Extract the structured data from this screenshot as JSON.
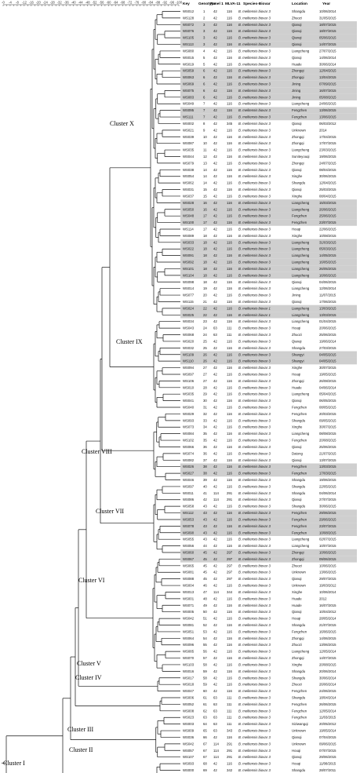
{
  "scale_labels": [
    "-0",
    "-2",
    "-4",
    "-6",
    "-8",
    "-10",
    "-12",
    "-14",
    "-16",
    "-18",
    "-20",
    "-22",
    "-24",
    "-26",
    "-28",
    "-30",
    "-32",
    "-34",
    "-36",
    "-38",
    "-40",
    "-42",
    "-44",
    "-46",
    "-48",
    "-50",
    "-52",
    "-54",
    "-56",
    "-58",
    "-60",
    "-62",
    "-64",
    "-66",
    "-68",
    "-70",
    "-72",
    "-74",
    "-76",
    "-78",
    "-80",
    "-82",
    "-84",
    "-86",
    "-88",
    "-90",
    "-92",
    "-94",
    "-96",
    "-98",
    "-100"
  ],
  "headers": {
    "key": "Key",
    "genotype": "Genotype",
    "panel1": "Panel 1",
    "mlva": "MLVA-11",
    "species": "Species-Biovar",
    "location": "Location",
    "year": "Year"
  },
  "colors": {
    "highlight": "#cfcfcf",
    "line": "#111111"
  },
  "rows": [
    [
      "WS012",
      "1",
      "42",
      "116",
      "B. melitensis biovar 3",
      "Shangdu",
      "10/06/2014",
      0
    ],
    [
      "WS128",
      "2",
      "42",
      "116",
      "B. melitensis biovar 3",
      "Zhuozi",
      "31/05/2015",
      0
    ],
    [
      "WS072",
      "3",
      "42",
      "116",
      "B. melitensis biovar 3",
      "Qianqi",
      "18/07/2015",
      1
    ],
    [
      "WS076",
      "3",
      "42",
      "116",
      "B. melitensis biovar 3",
      "Qianqi",
      "18/07/2015",
      1
    ],
    [
      "WS105",
      "3",
      "42",
      "116",
      "B. melitensis biovar 3",
      "Qianqi",
      "05/06/2015",
      1
    ],
    [
      "WS113",
      "3",
      "42",
      "116",
      "B. melitensis biovar 3",
      "Qianqi",
      "14/07/2015",
      1
    ],
    [
      "WS080",
      "4",
      "42",
      "116",
      "B. melitensis biovar 3",
      "Liangcheng",
      "27/07/2015",
      0
    ],
    [
      "WS015",
      "5",
      "42",
      "116",
      "B. melitensis biovar 3",
      "Qianqi",
      "14/06/2014",
      0
    ],
    [
      "WS019",
      "5",
      "42",
      "116",
      "B. melitensis biovar 3",
      "Huade",
      "30/06/2014",
      0
    ],
    [
      "WS059",
      "6",
      "42",
      "116",
      "B. melitensis biovar 3",
      "Zhongqi",
      "12/04/2015",
      1
    ],
    [
      "WS063",
      "6",
      "42",
      "116",
      "B. melitensis biovar 3",
      "Zhongqi",
      "13/04/2015",
      1
    ],
    [
      "WS069",
      "6",
      "42",
      "116",
      "B. melitensis biovar 3",
      "Jining",
      "07/09/2015",
      1
    ],
    [
      "WS075",
      "6",
      "42",
      "116",
      "B. melitensis biovar 3",
      "Jining",
      "16/07/2015",
      1
    ],
    [
      "WS083",
      "6",
      "42",
      "116",
      "B. melitensis biovar 3",
      "Jining",
      "05/08/2015",
      1
    ],
    [
      "WS049",
      "7",
      "42",
      "116",
      "B. melitensis biovar 3",
      "Liangcheng",
      "24/06/2015",
      0
    ],
    [
      "WS095",
      "7",
      "42",
      "116",
      "B. melitensis biovar 3",
      "Fengzhen",
      "13/06/2015",
      1
    ],
    [
      "WS111",
      "7",
      "42",
      "116",
      "B. melitensis biovar 3",
      "Fengzhen",
      "13/06/2015",
      1
    ],
    [
      "WS002",
      "8",
      "42",
      "345",
      "B. melitensis biovar 3",
      "Qianqi",
      "06/03/2012",
      0
    ],
    [
      "WS021",
      "9",
      "42",
      "116",
      "B. melitensis biovar 3",
      "Unknown",
      "2014",
      0
    ],
    [
      "WS039",
      "10",
      "42",
      "116",
      "B. melitensis biovar 3",
      "Zhongqi",
      "17/04/2015",
      0
    ],
    [
      "WS087",
      "10",
      "42",
      "116",
      "B. melitensis biovar 3",
      "Zhongqi",
      "17/07/2015",
      0
    ],
    [
      "WS035",
      "11",
      "42",
      "116",
      "B. melitensis biovar 3",
      "Liangcheng",
      "23/03/2015",
      0
    ],
    [
      "WS044",
      "12",
      "42",
      "116",
      "B. melitensis biovar 3",
      "Suniteyouqi",
      "19/06/2015",
      0
    ],
    [
      "WS079",
      "13",
      "42",
      "116",
      "B. melitensis biovar 3",
      "Zhongqi",
      "24/07/2015",
      0
    ],
    [
      "WS038",
      "14",
      "42",
      "116",
      "B. melitensis biovar 3",
      "Qianqi",
      "08/04/2015",
      0
    ],
    [
      "WS054",
      "14",
      "42",
      "116",
      "B. melitensis biovar 3",
      "Xinghe",
      "30/06/2015",
      0
    ],
    [
      "WS062",
      "14",
      "42",
      "116",
      "B. melitensis biovar 3",
      "Shangdu",
      "12/04/2015",
      0
    ],
    [
      "WS031",
      "15",
      "42",
      "116",
      "B. melitensis biovar 3",
      "Qianqi",
      "25/03/2015",
      0
    ],
    [
      "WS037",
      "15",
      "42",
      "116",
      "B. melitensis biovar 3",
      "Xinghe",
      "08/04/2015",
      0
    ],
    [
      "WS028",
      "16",
      "42",
      "116",
      "B. melitensis biovar 3",
      "Liangcheng",
      "15/03/2015",
      1
    ],
    [
      "WS050",
      "16",
      "42",
      "116",
      "B. melitensis biovar 3",
      "Liangcheng",
      "26/06/2015",
      1
    ],
    [
      "WS048",
      "17",
      "42",
      "116",
      "B. melitensis biovar 3",
      "Fengzhen",
      "25/06/2015",
      1
    ],
    [
      "WS100",
      "17",
      "42",
      "116",
      "B. melitensis biovar 3",
      "Fengzhen",
      "23/07/2015",
      1
    ],
    [
      "WS114",
      "17",
      "42",
      "116",
      "B. melitensis biovar 3",
      "Houqi",
      "22/06/2015",
      0
    ],
    [
      "WS089",
      "18",
      "42",
      "116",
      "B. melitensis biovar 3",
      "Xinghe",
      "10/08/2015",
      0
    ],
    [
      "WS033",
      "18",
      "42",
      "116",
      "B. melitensis biovar 3",
      "Liangcheng",
      "31/03/2015",
      1
    ],
    [
      "WS022",
      "18",
      "42",
      "116",
      "B. melitensis biovar 3",
      "Liangcheng",
      "05/03/2015",
      1
    ],
    [
      "WS091",
      "18",
      "42",
      "116",
      "B. melitensis biovar 3",
      "Liangcheng",
      "14/05/2015",
      1
    ],
    [
      "WS092",
      "18",
      "42",
      "116",
      "B. melitensis biovar 3",
      "Liangcheng",
      "16/05/2015",
      1
    ],
    [
      "WS101",
      "18",
      "42",
      "116",
      "B. melitensis biovar 3",
      "Liangcheng",
      "26/05/2015",
      1
    ],
    [
      "WS104",
      "18",
      "42",
      "116",
      "B. melitensis biovar 3",
      "Liangcheng",
      "16/06/2015",
      1
    ],
    [
      "WS098",
      "18",
      "42",
      "116",
      "B. melitensis biovar 3",
      "Qianqi",
      "04/06/2015",
      0
    ],
    [
      "WS014",
      "19",
      "42",
      "116",
      "B. melitensis biovar 3",
      "Liangcheng",
      "12/06/2014",
      0
    ],
    [
      "WS077",
      "20",
      "42",
      "116",
      "B. melitensis biovar 3",
      "Jining",
      "11/07/2015",
      0
    ],
    [
      "WS115",
      "21",
      "42",
      "116",
      "B. melitensis biovar 3",
      "Qianqi",
      "17/06/2015",
      0
    ],
    [
      "WS024",
      "22",
      "42",
      "116",
      "B. melitensis biovar 1",
      "Liangcheng",
      "13/03/2015",
      1
    ],
    [
      "WS025",
      "22",
      "42",
      "116",
      "B. melitensis biovar 1",
      "Liangcheng",
      "13/03/2015",
      1
    ],
    [
      "WS034",
      "23",
      "42",
      "116",
      "B. melitensis biovar 3",
      "Liangcheng",
      "01/04/2015",
      0
    ],
    [
      "WS043",
      "24",
      "63",
      "111",
      "B. melitensis biovar 3",
      "Houqi",
      "20/06/2015",
      0
    ],
    [
      "WS068",
      "24",
      "63",
      "111",
      "B. melitensis biovar 3",
      "Zhuozi",
      "25/06/2015",
      0
    ],
    [
      "WS020",
      "25",
      "42",
      "116",
      "B. melitensis biovar 3",
      "Qianqi",
      "19/06/2014",
      0
    ],
    [
      "WS032",
      "25",
      "42",
      "116",
      "B. melitensis biovar 3",
      "Shangdu",
      "27/03/2015",
      0
    ],
    [
      "WS109",
      "26",
      "42",
      "116",
      "B. melitensis biovar 3",
      "Shangyi",
      "04/05/2015",
      1
    ],
    [
      "WS110",
      "26",
      "42",
      "116",
      "B. melitensis biovar 3",
      "Shangyi",
      "04/05/2015",
      1
    ],
    [
      "WS094",
      "27",
      "42",
      "116",
      "B. melitensis biovar 3",
      "Xinghe",
      "30/07/2015",
      0
    ],
    [
      "WS097",
      "27",
      "42",
      "116",
      "B. melitensis biovar 3",
      "Houqi",
      "19/05/2015",
      0
    ],
    [
      "WS106",
      "27",
      "42",
      "116",
      "B. melitensis biovar 3",
      "Zhongqi",
      "26/08/2015",
      0
    ],
    [
      "WS010",
      "28",
      "42",
      "116",
      "B. melitensis biovar 3",
      "Huade",
      "04/06/2014",
      0
    ],
    [
      "WS035",
      "29",
      "42",
      "116",
      "B. melitensis biovar 3",
      "Liangcheng",
      "05/04/2015",
      0
    ],
    [
      "WS041",
      "30",
      "42",
      "116",
      "B. melitensis biovar 3",
      "Qianqi",
      "06/05/2015",
      0
    ],
    [
      "WS040",
      "31",
      "42",
      "116",
      "B. melitensis biovar 3",
      "Fengzhen",
      "08/05/2015",
      0
    ],
    [
      "WS029",
      "32",
      "42",
      "116",
      "B. melitensis biovar 3",
      "Fengzhen",
      "20/03/2015",
      0
    ],
    [
      "WS093",
      "33",
      "42",
      "116",
      "B. melitensis biovar 3",
      "Shangdu",
      "09/05/2015",
      0
    ],
    [
      "WS073",
      "34",
      "42",
      "116",
      "B. melitensis biovar 3",
      "Xinghe",
      "30/07/2015",
      0
    ],
    [
      "WS084",
      "35",
      "42",
      "116",
      "B. melitensis biovar 3",
      "Liangcheng",
      "08/08/2015",
      0
    ],
    [
      "WS102",
      "35",
      "42",
      "116",
      "B. melitensis biovar 3",
      "Fengzhen",
      "20/08/2015",
      0
    ],
    [
      "WS066",
      "36",
      "42",
      "116",
      "B. melitensis biovar 3",
      "Qianqi",
      "25/06/2015",
      0
    ],
    [
      "WS074",
      "36",
      "42",
      "116",
      "B. melitensis biovar 3",
      "Datong",
      "21/07/2015",
      0
    ],
    [
      "WS082",
      "37",
      "42",
      "116",
      "B. melitensis biovar 3",
      "Qianqi",
      "13/07/2015",
      0
    ],
    [
      "WS026",
      "38",
      "42",
      "116",
      "B. melitensis biovar 3",
      "Fengzhen",
      "13/03/2015",
      1
    ],
    [
      "WS027",
      "38",
      "42",
      "116",
      "B. melitensis biovar 3",
      "Fengzhen",
      "17/03/2015",
      1
    ],
    [
      "WS046",
      "39",
      "42",
      "116",
      "B. melitensis biovar 3",
      "Shangdu",
      "19/06/2015",
      0
    ],
    [
      "WS097",
      "40",
      "42",
      "116",
      "B. melitensis biovar 3",
      "Shangdu",
      "22/05/2015",
      0
    ],
    [
      "WS011",
      "41",
      "114",
      "291",
      "B. melitensis biovar 3",
      "Shangdu",
      "04/06/2014",
      0
    ],
    [
      "WS086",
      "42",
      "114",
      "291",
      "B. melitensis biovar 3",
      "Qianqi",
      "27/07/2015",
      0
    ],
    [
      "WS058",
      "43",
      "42",
      "116",
      "B. melitensis biovar 3",
      "Shangdu",
      "30/06/2015",
      0
    ],
    [
      "WS112",
      "43",
      "42",
      "116",
      "B. melitensis biovar 3",
      "Fengzhen",
      "29/06/2015",
      1
    ],
    [
      "WS053",
      "43",
      "42",
      "116",
      "B. melitensis biovar 3",
      "Fengzhen",
      "29/06/2015",
      1
    ],
    [
      "WS078",
      "43",
      "42",
      "116",
      "B. melitensis biovar 3",
      "Fengzhen",
      "23/07/2015",
      1
    ],
    [
      "WS090",
      "43",
      "42",
      "116",
      "B. melitensis biovar 3",
      "Fengzhen",
      "10/08/2015",
      1
    ],
    [
      "WS055",
      "43",
      "42",
      "116",
      "B. melitensis biovar 3",
      "Liangcheng",
      "02/07/2015",
      0
    ],
    [
      "WS056",
      "44",
      "42",
      "116",
      "B. melitensis biovar 3",
      "Liangcheng",
      "10/07/2015",
      0
    ],
    [
      "WS060",
      "45",
      "42",
      "297",
      "B. melitensis biovar 3",
      "Zhongqi",
      "10/06/2015",
      1
    ],
    [
      "WS067",
      "45",
      "42",
      "297",
      "B. melitensis biovar 3",
      "Zhongqi",
      "09/06/2015",
      1
    ],
    [
      "WS065",
      "45",
      "42",
      "297",
      "B. melitensis biovar 3",
      "Zhuozi",
      "10/06/2015",
      0
    ],
    [
      "WS081",
      "45",
      "42",
      "297",
      "B. melitensis biovar 3",
      "Unknown",
      "13/06/2015",
      0
    ],
    [
      "WS088",
      "45",
      "42",
      "297",
      "B. melitensis biovar 3",
      "Qianqi",
      "29/07/2015",
      0
    ],
    [
      "WS004",
      "46",
      "42",
      "116",
      "B. melitensis biovar 3",
      "Unknown",
      "19/03/2012",
      0
    ],
    [
      "WS013",
      "47",
      "114",
      "344",
      "B. melitensis biovar 3",
      "Xinghe",
      "10/06/2014",
      0
    ],
    [
      "WS001",
      "48",
      "42",
      "116",
      "B. melitensis biovar 3",
      "Huade",
      "2012",
      0
    ],
    [
      "WS071",
      "49",
      "42",
      "116",
      "B. melitensis biovar 3",
      "Huade",
      "16/07/2015",
      0
    ],
    [
      "WS005",
      "50",
      "42",
      "116",
      "B. melitensis biovar 3",
      "Qianqi",
      "10/04/2012",
      0
    ],
    [
      "WS042",
      "51",
      "42",
      "116",
      "B. melitensis biovar 3",
      "Houqi",
      "28/05/2014",
      0
    ],
    [
      "WS081",
      "52",
      "42",
      "116",
      "B. melitensis biovar 3",
      "Shangdu",
      "21/07/2015",
      0
    ],
    [
      "WS051",
      "53",
      "42",
      "116",
      "B. melitensis biovar 3",
      "Fengzhen",
      "16/06/2015",
      0
    ],
    [
      "WS064",
      "54",
      "42",
      "116",
      "B. melitensis biovar 3",
      "Zhongqi",
      "14/06/2015",
      0
    ],
    [
      "WS096",
      "55",
      "42",
      "116",
      "B. melitensis biovar 3",
      "Zhuozi",
      "13/06/2015",
      0
    ],
    [
      "WS085",
      "56",
      "42",
      "116",
      "B. melitensis biovar 3",
      "Liangcheng",
      "12/05/2014",
      0
    ],
    [
      "WS070",
      "57",
      "42",
      "116",
      "B. melitensis biovar 3",
      "Zhongqi",
      "14/07/2015",
      0
    ],
    [
      "WS103",
      "58",
      "42",
      "116",
      "B. melitensis biovar 3",
      "Xinghe",
      "20/08/2015",
      0
    ],
    [
      "WS016",
      "59",
      "42",
      "116",
      "B. melitensis biovar 3",
      "Shangdu",
      "20/06/2014",
      0
    ],
    [
      "WS017",
      "58",
      "42",
      "116",
      "B. melitensis biovar 3",
      "Shangdu",
      "30/06/2014",
      0
    ],
    [
      "WS018",
      "59",
      "42",
      "116",
      "B. melitensis biovar 3",
      "Zhuozi",
      "26/06/2014",
      0
    ],
    [
      "WS047",
      "60",
      "42",
      "116",
      "B. melitensis biovar 3",
      "Fengzhen",
      "24/06/2015",
      0
    ],
    [
      "WS006",
      "61",
      "63",
      "111",
      "B. melitensis biovar 3",
      "Shangdu",
      "18/04/2014",
      0
    ],
    [
      "WS052",
      "61",
      "63",
      "111",
      "B. melitensis biovar 3",
      "Fengzhen",
      "26/06/2015",
      0
    ],
    [
      "WS008",
      "62",
      "63",
      "111",
      "B. melitensis biovar 3",
      "Fengzhen",
      "12/05/2014",
      0
    ],
    [
      "WS023",
      "63",
      "63",
      "111",
      "B. melitensis biovar 3",
      "Fengzhen",
      "11/03/2015",
      0
    ],
    [
      "WS003",
      "64",
      "63",
      "111",
      "B. melitensis biovar 3",
      "Siziwangqi",
      "20/05/2012",
      0
    ],
    [
      "WS009",
      "65",
      "63",
      "343",
      "B. melitensis biovar 3",
      "Unknown",
      "19/05/2014",
      0
    ],
    [
      "WS036",
      "66",
      "42",
      "116",
      "B. melitensis biovar 3",
      "Qianqi",
      "07/04/2015",
      0
    ],
    [
      "WS042",
      "67",
      "114",
      "291",
      "B. melitensis biovar 3",
      "Unknown",
      "09/06/2015",
      0
    ],
    [
      "WS057",
      "67",
      "114",
      "291",
      "B. melitensis biovar 3",
      "Houqi",
      "07/07/2015",
      0
    ],
    [
      "WS107",
      "67",
      "114",
      "291",
      "B. melitensis biovar 3",
      "Qianqi",
      "29/06/2015",
      0
    ],
    [
      "WS093",
      "68",
      "42",
      "116",
      "B. melitensis biovar 3",
      "Houqi",
      "11/08/2015",
      0
    ],
    [
      "WS000",
      "69",
      "42",
      "342",
      "B. melitensis biovar 3",
      "Shangdu",
      "28/07/2011",
      0
    ]
  ],
  "clusters": [
    "Cluster X",
    "Cluster IX",
    "Cluster VIII",
    "Cluster VII",
    "Cluster VI",
    "Cluster V",
    "Cluster IV",
    "Cluster III",
    "Cluster II",
    "Cluster I"
  ]
}
